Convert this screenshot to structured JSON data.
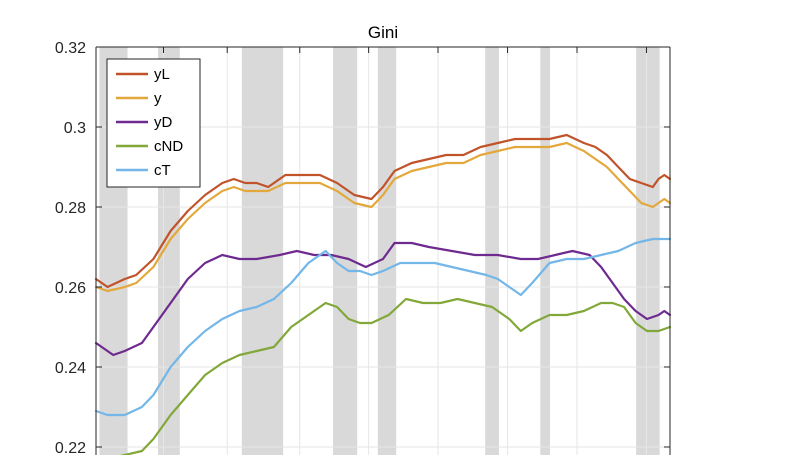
{
  "chart_data": {
    "type": "line",
    "title": "Gini",
    "xlabel": "",
    "ylabel": "",
    "ylim": [
      0.213,
      0.32
    ],
    "xlim": [
      0,
      100
    ],
    "yticks": [
      0.22,
      0.24,
      0.26,
      0.28,
      0.3,
      0.32
    ],
    "ytick_labels": [
      "0.22",
      "0.24",
      "0.26",
      "0.28",
      "0.3",
      "0.32"
    ],
    "xgrid": [
      0,
      11.76,
      22.86,
      35.5,
      47.5,
      59.58,
      71.7,
      83.8,
      95.9
    ],
    "grid": true,
    "legend": "top-left",
    "shaded_bands": [
      [
        0.6,
        5.5
      ],
      [
        10.8,
        14.6
      ],
      [
        25.4,
        32.6
      ],
      [
        41.3,
        45.5
      ],
      [
        49.1,
        52.3
      ],
      [
        67.8,
        70.2
      ],
      [
        77.4,
        79.1
      ],
      [
        94.1,
        98.2
      ]
    ],
    "colors": {
      "yL": "#c1532a",
      "y": "#e3a83c",
      "yD": "#6e2a8f",
      "cND": "#82a83a",
      "cT": "#73b6e8",
      "band": "#d9d9d9"
    },
    "series": [
      {
        "name": "yL",
        "x": [
          0,
          2,
          5,
          7,
          10,
          13,
          16,
          19,
          22,
          24,
          26,
          28,
          30,
          33,
          36,
          39,
          42,
          45,
          48,
          50,
          52,
          55,
          58,
          61,
          64,
          67,
          70,
          73,
          76,
          79,
          82,
          85,
          87,
          89,
          91,
          93,
          95,
          97,
          98,
          99,
          100
        ],
        "y": [
          0.262,
          0.26,
          0.262,
          0.263,
          0.267,
          0.274,
          0.279,
          0.283,
          0.286,
          0.287,
          0.286,
          0.286,
          0.285,
          0.288,
          0.288,
          0.288,
          0.286,
          0.283,
          0.282,
          0.285,
          0.289,
          0.291,
          0.292,
          0.293,
          0.293,
          0.295,
          0.296,
          0.297,
          0.297,
          0.297,
          0.298,
          0.296,
          0.295,
          0.293,
          0.29,
          0.287,
          0.286,
          0.285,
          0.287,
          0.288,
          0.287
        ]
      },
      {
        "name": "y",
        "x": [
          0,
          2,
          5,
          7,
          10,
          13,
          16,
          19,
          22,
          24,
          26,
          28,
          30,
          33,
          36,
          39,
          42,
          45,
          48,
          50,
          52,
          55,
          58,
          61,
          64,
          67,
          70,
          73,
          76,
          79,
          82,
          85,
          87,
          89,
          91,
          93,
          95,
          97,
          98,
          99,
          100
        ],
        "y": [
          0.26,
          0.259,
          0.26,
          0.261,
          0.265,
          0.272,
          0.277,
          0.281,
          0.284,
          0.285,
          0.284,
          0.284,
          0.284,
          0.286,
          0.286,
          0.286,
          0.284,
          0.281,
          0.28,
          0.283,
          0.287,
          0.289,
          0.29,
          0.291,
          0.291,
          0.293,
          0.294,
          0.295,
          0.295,
          0.295,
          0.296,
          0.294,
          0.292,
          0.29,
          0.287,
          0.284,
          0.281,
          0.28,
          0.281,
          0.282,
          0.281
        ]
      },
      {
        "name": "yD",
        "x": [
          0,
          2,
          3,
          5,
          8,
          10,
          13,
          16,
          19,
          22,
          25,
          28,
          32,
          35,
          38,
          41,
          44,
          47,
          50,
          52,
          55,
          58,
          62,
          66,
          70,
          74,
          77,
          80,
          83,
          86,
          88,
          90,
          92,
          94,
          96,
          98,
          99,
          100
        ],
        "y": [
          0.246,
          0.244,
          0.243,
          0.244,
          0.246,
          0.25,
          0.256,
          0.262,
          0.266,
          0.268,
          0.267,
          0.267,
          0.268,
          0.269,
          0.268,
          0.268,
          0.267,
          0.265,
          0.267,
          0.271,
          0.271,
          0.27,
          0.269,
          0.268,
          0.268,
          0.267,
          0.267,
          0.268,
          0.269,
          0.268,
          0.265,
          0.261,
          0.257,
          0.254,
          0.252,
          0.253,
          0.254,
          0.253
        ]
      },
      {
        "name": "cND",
        "x": [
          0,
          2,
          5,
          8,
          10,
          13,
          16,
          19,
          22,
          25,
          28,
          31,
          34,
          37,
          40,
          42,
          44,
          46,
          48,
          51,
          54,
          57,
          60,
          63,
          66,
          69,
          72,
          74,
          76,
          79,
          82,
          85,
          88,
          90,
          92,
          94,
          96,
          98,
          100
        ],
        "y": [
          0.217,
          0.217,
          0.218,
          0.219,
          0.222,
          0.228,
          0.233,
          0.238,
          0.241,
          0.243,
          0.244,
          0.245,
          0.25,
          0.253,
          0.256,
          0.255,
          0.252,
          0.251,
          0.251,
          0.253,
          0.257,
          0.256,
          0.256,
          0.257,
          0.256,
          0.255,
          0.252,
          0.249,
          0.251,
          0.253,
          0.253,
          0.254,
          0.256,
          0.256,
          0.255,
          0.251,
          0.249,
          0.249,
          0.25
        ]
      },
      {
        "name": "cT",
        "x": [
          0,
          2,
          5,
          8,
          10,
          13,
          16,
          19,
          22,
          25,
          28,
          31,
          34,
          37,
          40,
          42,
          44,
          46,
          48,
          50,
          53,
          56,
          59,
          62,
          65,
          68,
          70,
          72,
          74,
          76,
          79,
          82,
          85,
          88,
          91,
          94,
          97,
          100
        ],
        "y": [
          0.229,
          0.228,
          0.228,
          0.23,
          0.233,
          0.24,
          0.245,
          0.249,
          0.252,
          0.254,
          0.255,
          0.257,
          0.261,
          0.266,
          0.269,
          0.266,
          0.264,
          0.264,
          0.263,
          0.264,
          0.266,
          0.266,
          0.266,
          0.265,
          0.264,
          0.263,
          0.262,
          0.26,
          0.258,
          0.261,
          0.266,
          0.267,
          0.267,
          0.268,
          0.269,
          0.271,
          0.272,
          0.272
        ]
      }
    ]
  }
}
